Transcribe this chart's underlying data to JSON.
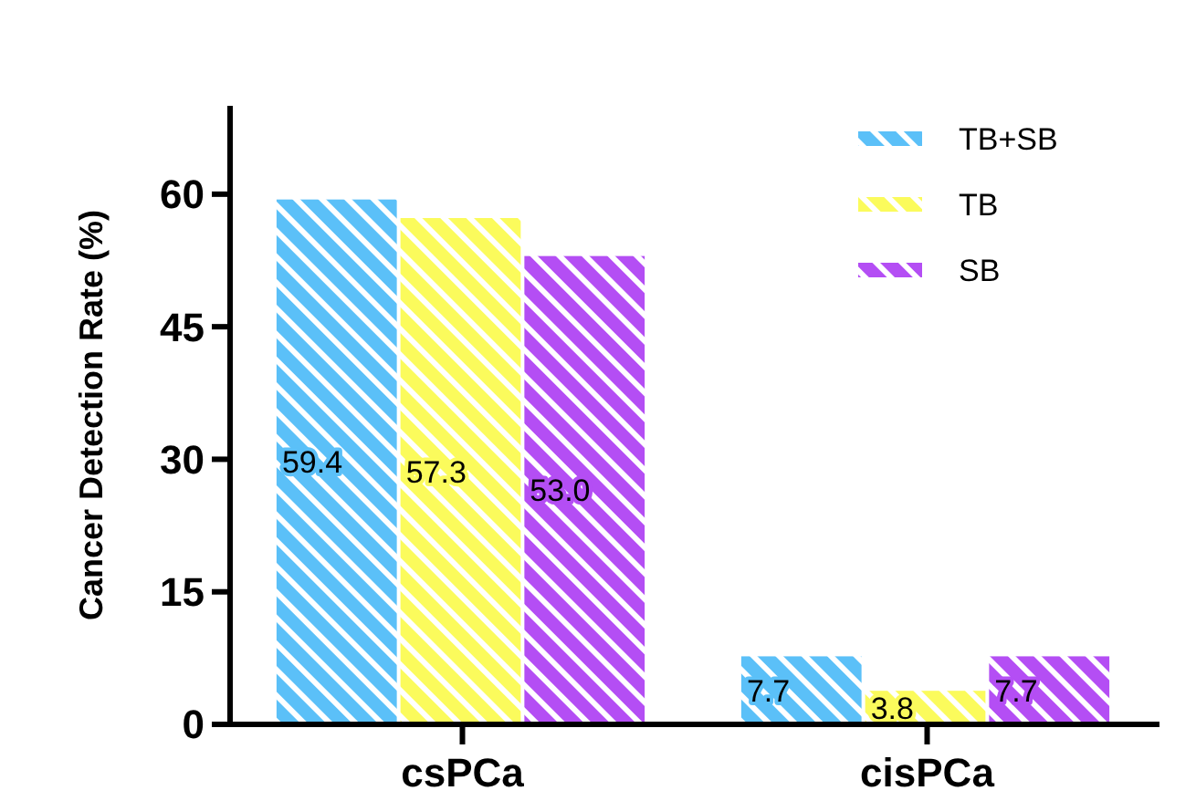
{
  "chart_data": {
    "type": "bar",
    "ylabel": "Cancer Detection Rate (%)",
    "categories": [
      "csPCa",
      "cisPCa"
    ],
    "series": [
      {
        "name": "TB+SB",
        "color": "#5bc0f8",
        "values": [
          59.4,
          7.7
        ],
        "value_labels": [
          "59.4",
          "7.7"
        ]
      },
      {
        "name": "TB",
        "color": "#fbfb5c",
        "values": [
          57.3,
          3.8
        ],
        "value_labels": [
          "57.3",
          "3.8"
        ]
      },
      {
        "name": "SB",
        "color": "#b44ef4",
        "values": [
          53.0,
          7.7
        ],
        "value_labels": [
          "53.0",
          "7.7"
        ]
      }
    ],
    "ylim": [
      0,
      70
    ],
    "yticks": [
      0,
      15,
      30,
      45,
      60
    ],
    "legend": "top right",
    "grid": false
  }
}
